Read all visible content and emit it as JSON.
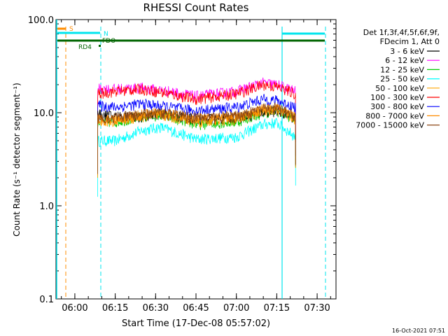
{
  "chart_data": {
    "type": "line",
    "title": "RHESSI Count Rates",
    "xlabel": "Start Time (17-Dec-08 05:57:02)",
    "ylabel": "Count Rate (s⁻¹ detector segment⁻¹)",
    "yscale": "log",
    "ylim": [
      0.1,
      100.0
    ],
    "xlim_minutes_after_0600": [
      -7,
      97
    ],
    "x_ticks": [
      "06:00",
      "06:15",
      "06:30",
      "06:45",
      "07:00",
      "07:15",
      "07:30"
    ],
    "y_ticks": [
      "0.1",
      "1.0",
      "10.0",
      "100.0"
    ],
    "legend_header": [
      "Det 1f,3f,4f,5f,6f,9f,",
      "FDecim 1, Att 0"
    ],
    "legend_position": "right",
    "series": [
      {
        "name": "3 - 6 keV",
        "color": "#000000",
        "values": [
          [
            8.5,
            9.5
          ],
          [
            15,
            9.2
          ],
          [
            25,
            9.0
          ],
          [
            32,
            9.8
          ],
          [
            45,
            8.5
          ],
          [
            60,
            8.8
          ],
          [
            70,
            10.0
          ],
          [
            75,
            10.5
          ],
          [
            82,
            8.8
          ]
        ]
      },
      {
        "name": "6 - 12 keV",
        "color": "#ff00ff",
        "values": [
          [
            8.5,
            18
          ],
          [
            15,
            18
          ],
          [
            25,
            18.5
          ],
          [
            35,
            17
          ],
          [
            45,
            15
          ],
          [
            60,
            17
          ],
          [
            70,
            21
          ],
          [
            75,
            20
          ],
          [
            82,
            17
          ]
        ]
      },
      {
        "name": "12 - 25 keV",
        "color": "#00cc00",
        "values": [
          [
            8.5,
            8.0
          ],
          [
            15,
            8.0
          ],
          [
            25,
            9.0
          ],
          [
            32,
            9.5
          ],
          [
            45,
            7.5
          ],
          [
            60,
            8.0
          ],
          [
            70,
            10.0
          ],
          [
            75,
            10.5
          ],
          [
            82,
            8.5
          ]
        ]
      },
      {
        "name": "25 - 50 keV",
        "color": "#00ffff",
        "values": [
          [
            8.5,
            5.0
          ],
          [
            15,
            5.0
          ],
          [
            25,
            6.5
          ],
          [
            32,
            7.0
          ],
          [
            45,
            5.2
          ],
          [
            60,
            5.5
          ],
          [
            70,
            7.5
          ],
          [
            75,
            7.8
          ],
          [
            82,
            5.5
          ]
        ]
      },
      {
        "name": "50 - 100 keV",
        "color": "#ffa500",
        "values": [
          [
            8.5,
            8.0
          ],
          [
            15,
            8.2
          ],
          [
            25,
            9.0
          ],
          [
            32,
            9.5
          ],
          [
            45,
            8.0
          ],
          [
            60,
            8.5
          ],
          [
            70,
            10.5
          ],
          [
            75,
            10.8
          ],
          [
            82,
            8.5
          ]
        ]
      },
      {
        "name": "100 - 300 keV",
        "color": "#ff0000",
        "values": [
          [
            8.5,
            16
          ],
          [
            15,
            17
          ],
          [
            25,
            18
          ],
          [
            35,
            16
          ],
          [
            45,
            14
          ],
          [
            60,
            16
          ],
          [
            70,
            20
          ],
          [
            75,
            19
          ],
          [
            82,
            16
          ]
        ]
      },
      {
        "name": "300 - 800 keV",
        "color": "#0000ff",
        "values": [
          [
            8.5,
            12
          ],
          [
            15,
            11.5
          ],
          [
            25,
            12.5
          ],
          [
            35,
            11.5
          ],
          [
            45,
            10.5
          ],
          [
            60,
            11.5
          ],
          [
            70,
            14
          ],
          [
            75,
            13.5
          ],
          [
            82,
            11.5
          ]
        ]
      },
      {
        "name": "800 - 7000 keV",
        "color": "#ff8c00",
        "values": [
          [
            8.5,
            8.5
          ],
          [
            15,
            8.5
          ],
          [
            25,
            9.5
          ],
          [
            32,
            10
          ],
          [
            45,
            8.5
          ],
          [
            60,
            9.0
          ],
          [
            70,
            11
          ],
          [
            75,
            11
          ],
          [
            82,
            9
          ]
        ]
      },
      {
        "name": "7000 - 15000 keV",
        "color": "#8b4513",
        "values": [
          [
            8.5,
            8.8
          ],
          [
            15,
            8.8
          ],
          [
            25,
            9.6
          ],
          [
            32,
            10
          ],
          [
            45,
            8.8
          ],
          [
            60,
            9.2
          ],
          [
            70,
            11
          ],
          [
            75,
            11.2
          ],
          [
            82,
            9.2
          ]
        ]
      }
    ],
    "annotations": [
      {
        "text": "S",
        "color": "#ff8c00"
      },
      {
        "text": "N",
        "color": "#00e5ee"
      },
      {
        "text": "FDO",
        "color": "#006400"
      },
      {
        "text": "RD4",
        "color": "#006400"
      }
    ],
    "timestamp": "16-Oct-2021 07:51"
  }
}
